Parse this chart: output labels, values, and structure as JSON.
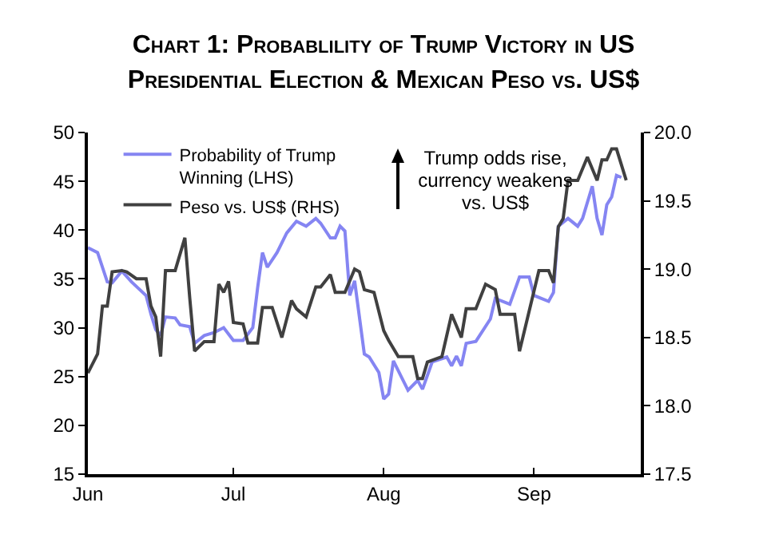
{
  "chart_data": {
    "type": "line",
    "title": "Chart 1: Probablility of Trump Victory in US Presidential Election & Mexican Peso vs. US$",
    "annotations": [
      "Trump odds rise, currency weakens vs. US$"
    ],
    "xlim": [
      "--06-01",
      "--09-23"
    ],
    "xticks": [
      {
        "value": "--06-01",
        "label": "Jun"
      },
      {
        "value": "--07-01",
        "label": "Jul"
      },
      {
        "value": "--08-01",
        "label": "Aug"
      },
      {
        "value": "--09-01",
        "label": "Sep"
      }
    ],
    "ylim": [
      15,
      50
    ],
    "yticks": [
      15,
      20,
      25,
      30,
      35,
      40,
      45,
      50
    ],
    "y2lim": [
      17.5,
      20.0
    ],
    "y2ticks": [
      17.5,
      {
        "value": 18,
        "label": "18.0"
      },
      18.5,
      {
        "value": 19,
        "label": "19.0"
      },
      19.5,
      {
        "value": 20,
        "label": "20.0"
      }
    ],
    "grid": false,
    "legend": "top left",
    "line_style": "solid",
    "series": [
      {
        "name": "Probability of Trump Winning (LHS)",
        "color": "#8585f2",
        "x": [
          "--06-01",
          "--06-03",
          "--06-05",
          "--06-06",
          "--06-08",
          "--06-10",
          "--06-13",
          "--06-14",
          "--06-15",
          "--06-16",
          "--06-17",
          "--06-19",
          "--06-20",
          "--06-22",
          "--06-23",
          "--06-25",
          "--06-27",
          "--06-29",
          "--07-01",
          "--07-03",
          "--07-05",
          "--07-06",
          "--07-07",
          "--07-08",
          "--07-10",
          "--07-12",
          "--07-14",
          "--07-16",
          "--07-18",
          "--07-19",
          "--07-21",
          "--07-22",
          "--07-23",
          "--07-24",
          "--07-25",
          "--07-26",
          "--07-28",
          "--07-29",
          "--07-31",
          "--08-01",
          "--08-02",
          "--08-03",
          "--08-05",
          "--08-06",
          "--08-08",
          "--08-09",
          "--08-11",
          "--08-14",
          "--08-15",
          "--08-16",
          "--08-17",
          "--08-18",
          "--08-20",
          "--08-23",
          "--08-24",
          "--08-27",
          "--08-29",
          "--08-31",
          "--09-01",
          "--09-04",
          "--09-05",
          "--09-06",
          "--09-08",
          "--09-10",
          "--09-11",
          "--09-13",
          "--09-14",
          "--09-15",
          "--09-16",
          "--09-17",
          "--09-18",
          "--09-19"
        ],
        "values": [
          38.2,
          37.7,
          34.7,
          34.6,
          35.8,
          34.7,
          33.3,
          31.4,
          29.8,
          29.2,
          31.1,
          31.0,
          30.3,
          30.1,
          28.4,
          29.2,
          29.5,
          30.0,
          28.7,
          28.7,
          30.0,
          34.1,
          37.7,
          36.2,
          37.7,
          39.7,
          40.9,
          40.4,
          41.2,
          40.7,
          39.2,
          39.2,
          40.4,
          39.9,
          33.3,
          34.8,
          27.3,
          27.0,
          25.4,
          22.7,
          23.2,
          26.6,
          24.6,
          23.6,
          24.6,
          23.7,
          26.5,
          27.0,
          26.1,
          27.1,
          26.1,
          28.4,
          28.6,
          30.9,
          33.0,
          32.4,
          35.2,
          35.2,
          33.3,
          32.7,
          33.6,
          40.4,
          41.2,
          40.4,
          41.2,
          44.5,
          41.2,
          39.5,
          42.6,
          43.4,
          45.6,
          45.4
        ]
      },
      {
        "name": "Peso vs. US$ (RHS)",
        "color": "#404040",
        "axis": "y2",
        "x": [
          "--06-01",
          "--06-03",
          "--06-04",
          "--06-05",
          "--06-06",
          "--06-08",
          "--06-09",
          "--06-11",
          "--06-13",
          "--06-14",
          "--06-15",
          "--06-16",
          "--06-17",
          "--06-19",
          "--06-21",
          "--06-22",
          "--06-23",
          "--06-25",
          "--06-27",
          "--06-28",
          "--06-29",
          "--06-30",
          "--07-01",
          "--07-03",
          "--07-04",
          "--07-06",
          "--07-07",
          "--07-09",
          "--07-11",
          "--07-13",
          "--07-14",
          "--07-16",
          "--07-18",
          "--07-19",
          "--07-21",
          "--07-22",
          "--07-24",
          "--07-26",
          "--07-27",
          "--07-28",
          "--07-30",
          "--08-01",
          "--08-02",
          "--08-04",
          "--08-07",
          "--08-08",
          "--08-09",
          "--08-10",
          "--08-13",
          "--08-15",
          "--08-17",
          "--08-18",
          "--08-20",
          "--08-22",
          "--08-24",
          "--08-25",
          "--08-28",
          "--08-29",
          "--09-02",
          "--09-04",
          "--09-05",
          "--09-06",
          "--09-07",
          "--09-08",
          "--09-10",
          "--09-12",
          "--09-14",
          "--09-15",
          "--09-16",
          "--09-17",
          "--09-18",
          "--09-20"
        ],
        "values": [
          18.24,
          18.38,
          18.73,
          18.73,
          18.98,
          18.99,
          18.98,
          18.93,
          18.93,
          18.73,
          18.65,
          18.36,
          18.99,
          18.99,
          19.23,
          18.79,
          18.4,
          18.47,
          18.47,
          18.89,
          18.83,
          18.91,
          18.61,
          18.6,
          18.46,
          18.46,
          18.72,
          18.72,
          18.5,
          18.77,
          18.71,
          18.65,
          18.87,
          18.87,
          18.96,
          18.83,
          18.83,
          19.0,
          18.98,
          18.85,
          18.83,
          18.55,
          18.48,
          18.36,
          18.36,
          18.2,
          18.2,
          18.32,
          18.36,
          18.67,
          18.5,
          18.71,
          18.71,
          18.89,
          18.85,
          18.67,
          18.67,
          18.4,
          18.99,
          18.99,
          18.9,
          19.31,
          19.37,
          19.65,
          19.65,
          19.82,
          19.65,
          19.8,
          19.8,
          19.88,
          19.88,
          19.65
        ]
      }
    ]
  }
}
